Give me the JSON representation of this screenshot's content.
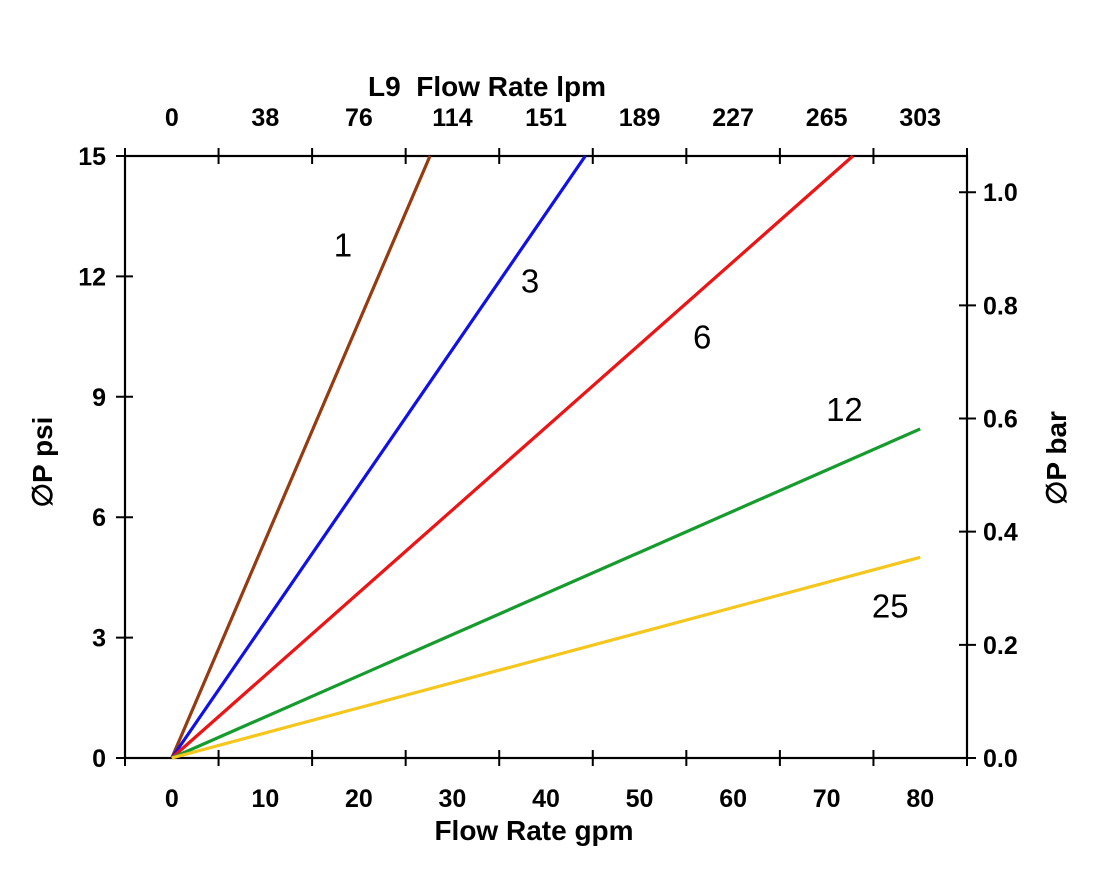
{
  "chart_data": {
    "type": "line",
    "description": "Pressure drop vs flow rate curves for L9 filter elements (micron ratings 1, 3, 6, 12, 25)",
    "title_top": "L9  Flow Rate lpm",
    "x_axis_bottom": {
      "label": "Flow Rate gpm",
      "tick_labels": [
        "0",
        "10",
        "20",
        "30",
        "40",
        "50",
        "60",
        "70",
        "80"
      ],
      "tick_values_gpm": [
        0,
        10,
        20,
        30,
        40,
        50,
        60,
        70,
        80
      ],
      "lim_gpm": [
        -5,
        85
      ],
      "grid": false
    },
    "x_axis_top": {
      "label": "L9  Flow Rate lpm",
      "tick_labels": [
        "0",
        "38",
        "76",
        "114",
        "151",
        "189",
        "227",
        "265",
        "303"
      ],
      "tick_values_lpm": [
        0,
        38,
        76,
        114,
        151,
        189,
        227,
        265,
        303
      ]
    },
    "y_axis_left": {
      "label": "∅P psi",
      "tick_labels": [
        "0",
        "3",
        "6",
        "9",
        "12",
        "15"
      ],
      "tick_values_psi": [
        0,
        3,
        6,
        9,
        12,
        15
      ],
      "lim_psi": [
        0,
        15
      ]
    },
    "y_axis_right": {
      "label": "∅P bar",
      "tick_labels": [
        "0.0",
        "0.2",
        "0.4",
        "0.6",
        "0.8",
        "1.0"
      ],
      "tick_values_bar": [
        0,
        0.2,
        0.4,
        0.6,
        0.8,
        1.0
      ],
      "lim_bar": [
        0,
        1.064
      ]
    },
    "series": [
      {
        "name": "1",
        "color": "#963A10",
        "points_gpm_psi": [
          [
            0,
            0
          ],
          [
            27.6,
            15
          ]
        ],
        "label_at_gpm_psi": [
          18.3,
          12.8
        ]
      },
      {
        "name": "3",
        "color": "#1010E8",
        "points_gpm_psi": [
          [
            0,
            0
          ],
          [
            44.2,
            15
          ]
        ],
        "label_at_gpm_psi": [
          38.3,
          11.9
        ]
      },
      {
        "name": "6",
        "color": "#EC1414",
        "points_gpm_psi": [
          [
            0,
            0
          ],
          [
            72.8,
            15
          ]
        ],
        "label_at_gpm_psi": [
          56.7,
          10.5
        ]
      },
      {
        "name": "12",
        "color": "#159C2D",
        "points_gpm_psi": [
          [
            0,
            0
          ],
          [
            80,
            8.2
          ]
        ],
        "label_at_gpm_psi": [
          71.9,
          8.7
        ]
      },
      {
        "name": "25",
        "color": "#F5C71E",
        "points_gpm_psi": [
          [
            0,
            0
          ],
          [
            80,
            5.0
          ]
        ],
        "label_at_gpm_psi": [
          76.8,
          3.8
        ]
      }
    ],
    "legend": "none",
    "axis_color": "#000000"
  }
}
